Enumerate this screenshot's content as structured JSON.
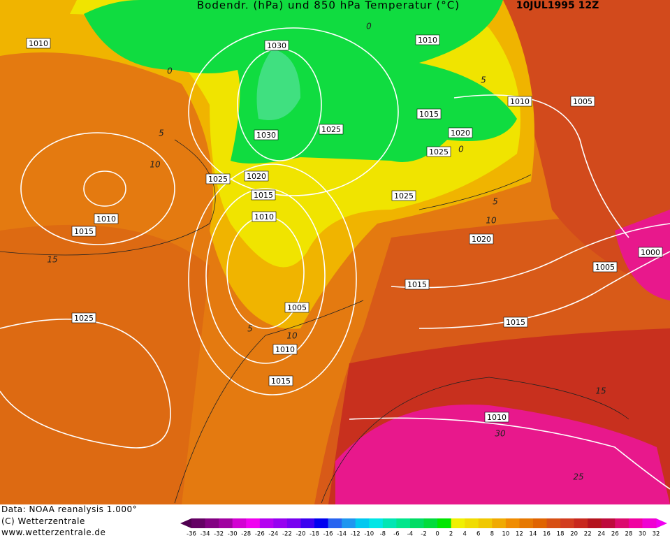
{
  "header": {
    "title": "Bodendr. (hPa) und 850 hPa Temperatur (°C)",
    "date": "10JUL1995 12Z"
  },
  "isobar_labels": [
    "1010",
    "1010",
    "1030",
    "1010",
    "1005",
    "1015",
    "1020",
    "1030",
    "1025",
    "1025",
    "1025",
    "1020",
    "1015",
    "1025",
    "1010",
    "1010",
    "1015",
    "1020",
    "1000",
    "1005",
    "1015",
    "1005",
    "1025",
    "1015",
    "1010",
    "1015",
    "1010"
  ],
  "isotherm_labels": [
    "0",
    "0",
    "5",
    "0",
    "5",
    "10",
    "5",
    "10",
    "15",
    "5",
    "10",
    "15",
    "30",
    "25"
  ],
  "footer": {
    "source": "Data: NOAA reanalysis 1.000°",
    "copyright": "(C) Wetterzentrale",
    "url": "www.wetterzentrale.de"
  },
  "colorbar": {
    "ticks": [
      -36,
      -34,
      -32,
      -30,
      -28,
      -26,
      -24,
      -22,
      -20,
      -18,
      -16,
      -14,
      -12,
      -10,
      -8,
      -6,
      -4,
      -2,
      0,
      2,
      4,
      6,
      8,
      10,
      12,
      14,
      16,
      18,
      20,
      22,
      24,
      26,
      28,
      30,
      32
    ],
    "colors": [
      "#500050",
      "#640064",
      "#820082",
      "#a000a0",
      "#d200d2",
      "#f000f0",
      "#b400f0",
      "#9600f0",
      "#7800f0",
      "#3c00f0",
      "#0000f0",
      "#2864f0",
      "#1e96f0",
      "#00c8f0",
      "#00e6e6",
      "#00e6b4",
      "#00e68c",
      "#00dc64",
      "#00dc3c",
      "#00e600",
      "#f0f000",
      "#f0dc00",
      "#f0c800",
      "#f0aa00",
      "#f08c00",
      "#e67800",
      "#e06400",
      "#d75014",
      "#d23c1e",
      "#c8281e",
      "#b4141e",
      "#be0a3c",
      "#dc0a6e",
      "#f000a0",
      "#f000d2",
      "#f000f0"
    ]
  }
}
